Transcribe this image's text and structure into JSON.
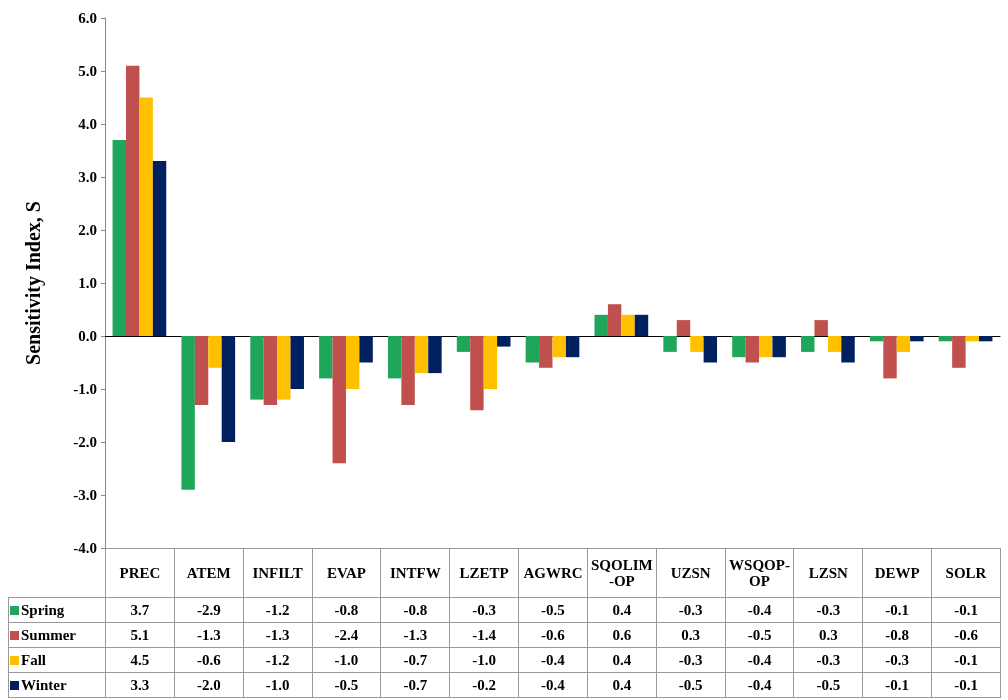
{
  "chart_data": {
    "type": "bar",
    "ylabel": "Sensitivity Index, S",
    "categories": [
      "PREC",
      "ATEM",
      "INFILT",
      "EVAP",
      "INTFW",
      "LZETP",
      "AGWRC",
      "SQOLIM-OP",
      "UZSN",
      "WSQOP-OP",
      "LZSN",
      "DEWP",
      "SOLR"
    ],
    "series": [
      {
        "name": "Spring",
        "color": "#1fa65a",
        "values": [
          3.7,
          -2.9,
          -1.2,
          -0.8,
          -0.8,
          -0.3,
          -0.5,
          0.4,
          -0.3,
          -0.4,
          -0.3,
          -0.1,
          -0.1
        ],
        "value_labels": [
          "3.7",
          "-2.9",
          "-1.2",
          "-0.8",
          "-0.8",
          "-0.3",
          "-0.5",
          "0.4",
          "-0.3",
          "-0.4",
          "-0.3",
          "-0.1",
          "-0.1"
        ]
      },
      {
        "name": "Summer",
        "color": "#c0504d",
        "values": [
          5.1,
          -1.3,
          -1.3,
          -2.4,
          -1.3,
          -1.4,
          -0.6,
          0.6,
          0.3,
          -0.5,
          0.3,
          -0.8,
          -0.6
        ],
        "value_labels": [
          "5.1",
          "-1.3",
          "-1.3",
          "-2.4",
          "-1.3",
          "-1.4",
          "-0.6",
          "0.6",
          "0.3",
          "-0.5",
          "0.3",
          "-0.8",
          "-0.6"
        ]
      },
      {
        "name": "Fall",
        "color": "#ffc000",
        "values": [
          4.5,
          -0.6,
          -1.2,
          -1.0,
          -0.7,
          -1.0,
          -0.4,
          0.4,
          -0.3,
          -0.4,
          -0.3,
          -0.3,
          -0.1
        ],
        "value_labels": [
          "4.5",
          "-0.6",
          "-1.2",
          "-1.0",
          "-0.7",
          "-1.0",
          "-0.4",
          "0.4",
          "-0.3",
          "-0.4",
          "-0.3",
          "-0.3",
          "-0.1"
        ]
      },
      {
        "name": "Winter",
        "color": "#002060",
        "values": [
          3.3,
          -2.0,
          -1.0,
          -0.5,
          -0.7,
          -0.2,
          -0.4,
          0.4,
          -0.5,
          -0.4,
          -0.5,
          -0.1,
          -0.1
        ],
        "value_labels": [
          "3.3",
          "-2.0",
          "-1.0",
          "-0.5",
          "-0.7",
          "-0.2",
          "-0.4",
          "0.4",
          "-0.5",
          "-0.4",
          "-0.5",
          "-0.1",
          "-0.1"
        ]
      }
    ],
    "ylim": [
      -4,
      6
    ],
    "yticks": [
      {
        "value": -4,
        "label": "-4.0"
      },
      {
        "value": -3,
        "label": "-3.0"
      },
      {
        "value": -2,
        "label": "-2.0"
      },
      {
        "value": -1,
        "label": "-1.0"
      },
      {
        "value": 0,
        "label": "0.0"
      },
      {
        "value": 1,
        "label": "1.0"
      },
      {
        "value": 2,
        "label": "2.0"
      },
      {
        "value": 3,
        "label": "3.0"
      },
      {
        "value": 4,
        "label": "4.0"
      },
      {
        "value": 5,
        "label": "5.0"
      },
      {
        "value": 6,
        "label": "6.0"
      }
    ],
    "legend": "bottom left",
    "tick_labels": "y"
  }
}
